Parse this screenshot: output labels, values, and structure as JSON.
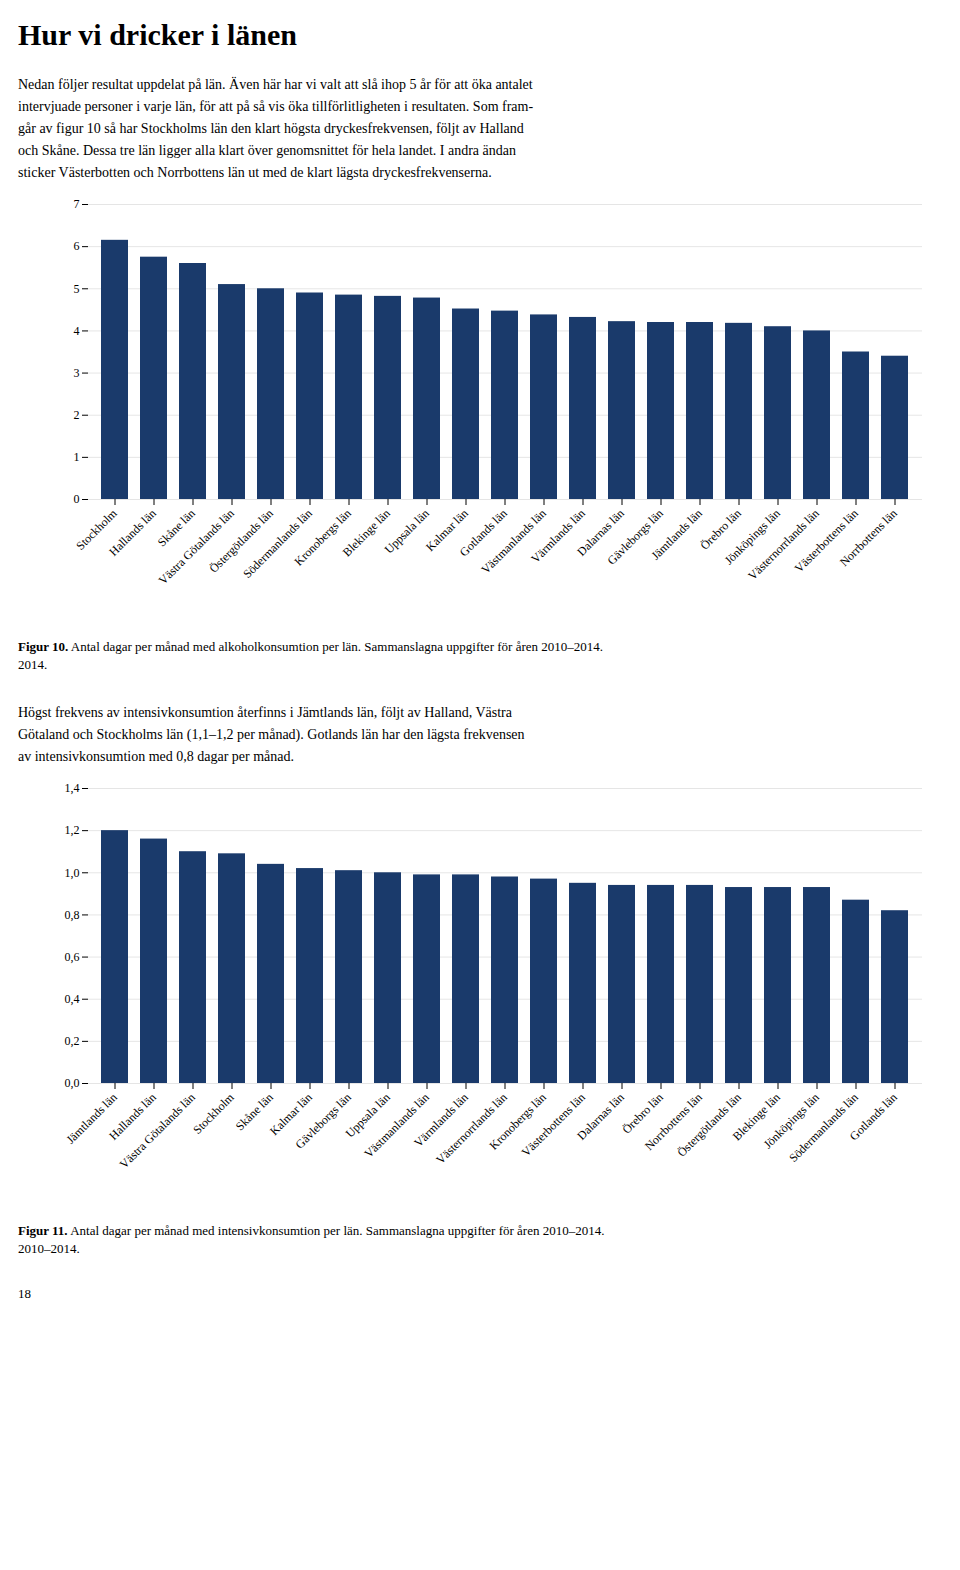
{
  "title": "Hur vi dricker i länen",
  "intro": [
    "Nedan följer resultat uppdelat på län. Även här har vi valt att slå ihop 5 år för att öka antalet",
    "intervjuade personer i varje län, för att på så vis öka tillförlitligheten i resultaten. Som fram-",
    "går av figur 10 så har Stockholms län den klart högsta dryckesfrekvensen, följt av Halland",
    "och Skåne. Dessa tre län ligger alla klart över genomsnittet för hela landet. I andra ändan",
    "sticker Västerbotten och Norrbottens län ut med de klart lägsta dryckesfrekvenserna."
  ],
  "middle_text": [
    "Högst frekvens av intensivkonsumtion återfinns i Jämtlands län, följt av Halland, Västra",
    "Götaland och Stockholms län (1,1–1,2 per månad). Gotlands län har den lägsta frekvensen",
    "av intensivkonsumtion med 0,8 dagar per månad."
  ],
  "page_number": "18",
  "chart_data": [
    {
      "type": "bar",
      "categories": [
        "Stockholm",
        "Hallands län",
        "Skåne län",
        "Västra Götalands län",
        "Östergötlands län",
        "Södermanlands län",
        "Kronobergs län",
        "Blekinge län",
        "Uppsala län",
        "Kalmar län",
        "Gotlands län",
        "Västmanlands län",
        "Värmlands län",
        "Dalarnas län",
        "Gävleborgs län",
        "Jämtlands län",
        "Örebro län",
        "Jönköpings län",
        "Västernorrlands län",
        "Västerbottens län",
        "Norrbottens län"
      ],
      "values": [
        6.15,
        5.75,
        5.6,
        5.1,
        5.0,
        4.9,
        4.85,
        4.82,
        4.78,
        4.52,
        4.47,
        4.38,
        4.32,
        4.22,
        4.2,
        4.2,
        4.18,
        4.1,
        4.0,
        3.5,
        3.4
      ],
      "color": "#1a3a6b",
      "ylim": [
        0,
        7
      ],
      "yticks": [
        0,
        1,
        2,
        3,
        4,
        5,
        6,
        7
      ],
      "grid": true,
      "caption_bold": "Figur 10.",
      "caption": [
        "Antal dagar per månad med alkoholkonsumtion per län. Sammanslagna uppgifter för åren 2010–2014.",
        "2014."
      ]
    },
    {
      "type": "bar",
      "categories": [
        "Jämtlands län",
        "Hallands län",
        "Västra Götalands län",
        "Stockholm",
        "Skåne län",
        "Kalmar län",
        "Gävleborgs län",
        "Uppsala län",
        "Västmanlands län",
        "Värmlands län",
        "Västernorrlands län",
        "Kronobergs län",
        "Västerbottens län",
        "Dalarnas län",
        "Örebro län",
        "Norrbottens län",
        "Östergötlands län",
        "Blekinge län",
        "Jönköpings län",
        "Södermanlands län",
        "Gotlands län"
      ],
      "values": [
        1.2,
        1.16,
        1.1,
        1.09,
        1.04,
        1.02,
        1.01,
        1.0,
        0.99,
        0.99,
        0.98,
        0.97,
        0.95,
        0.94,
        0.94,
        0.94,
        0.93,
        0.93,
        0.93,
        0.87,
        0.82
      ],
      "color": "#1a3a6b",
      "ylim": [
        0,
        1.4
      ],
      "yticks": [
        {
          "value": 0.0,
          "label": "0,0"
        },
        {
          "value": 0.2,
          "label": "0,2"
        },
        {
          "value": 0.4,
          "label": "0,4"
        },
        {
          "value": 0.6,
          "label": "0,6"
        },
        {
          "value": 0.8,
          "label": "0,8"
        },
        {
          "value": 1.0,
          "label": "1,0"
        },
        {
          "value": 1.2,
          "label": "1,2"
        },
        {
          "value": 1.4,
          "label": "1,4"
        }
      ],
      "grid": true,
      "caption_bold": "Figur 11.",
      "caption": [
        "Antal dagar per månad med intensivkonsumtion per län. Sammanslagna uppgifter för åren 2010–2014.",
        "2010–2014."
      ]
    }
  ]
}
